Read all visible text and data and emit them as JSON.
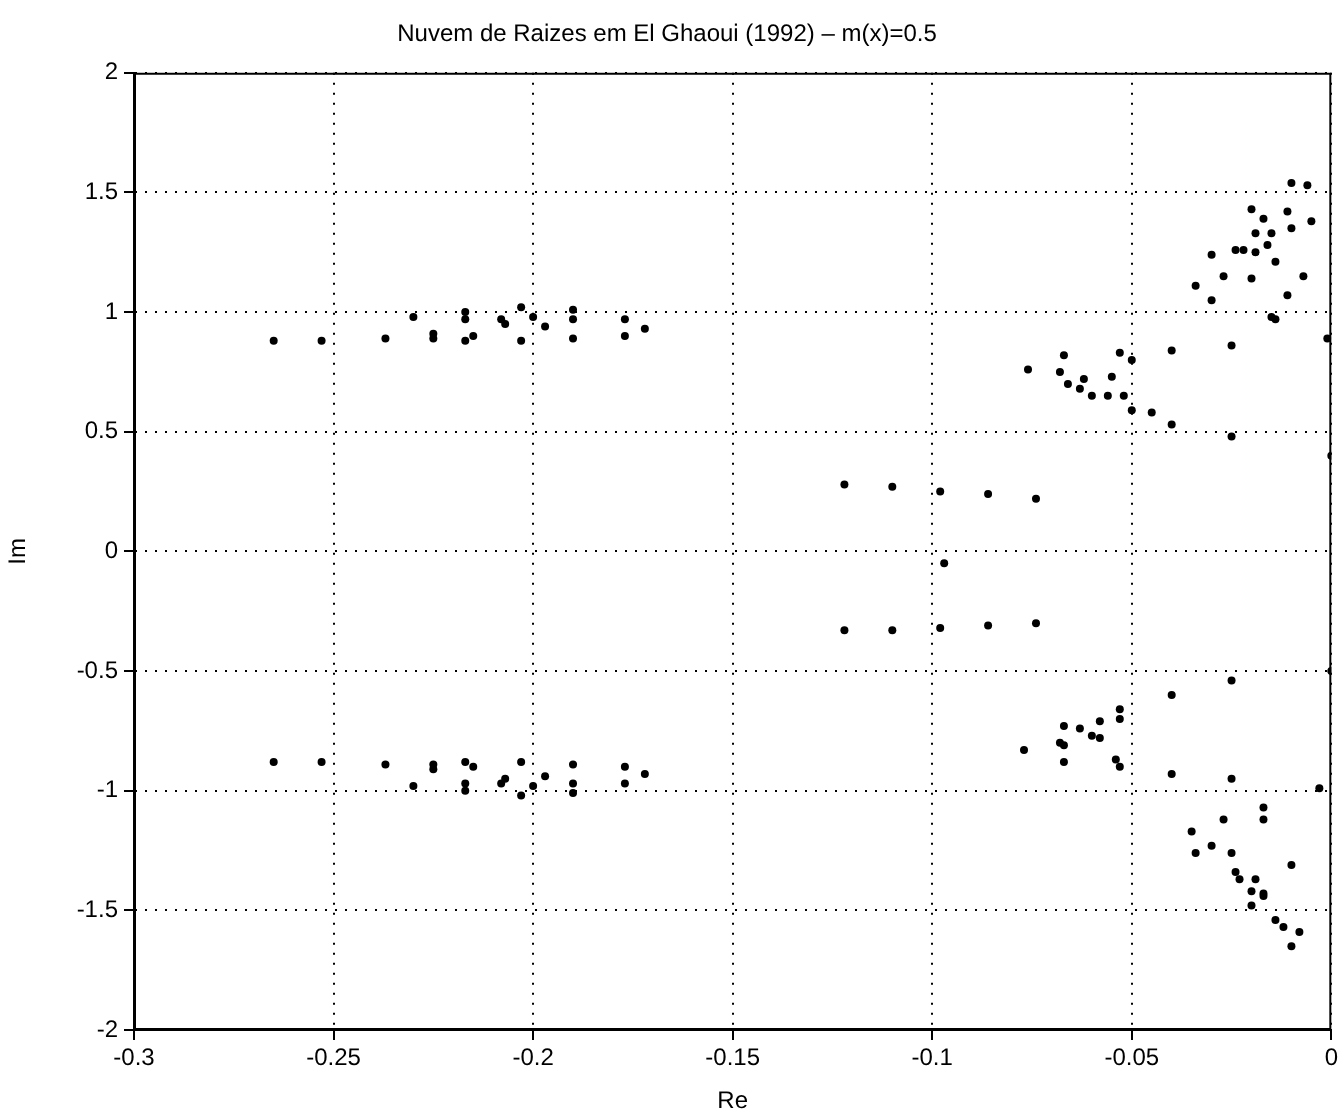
{
  "chart_data": {
    "type": "scatter",
    "title": "Nuvem de Raizes em El Ghaoui (1992) – m(x)=0.5",
    "xlabel": "Re",
    "ylabel": "Im",
    "xlim": [
      -0.3,
      0
    ],
    "xticks": [
      -0.3,
      -0.25,
      -0.2,
      -0.15,
      -0.1,
      -0.05,
      0
    ],
    "ylim": [
      -2,
      2
    ],
    "yticks": [
      -2,
      -1.5,
      -1,
      -0.5,
      0,
      0.5,
      1,
      1.5,
      2
    ],
    "grid": true,
    "marker": "circle",
    "legend": false,
    "series": [
      {
        "color": "#000000",
        "x": [
          -0.265,
          -0.253,
          -0.237,
          -0.225,
          -0.217,
          -0.203,
          -0.19,
          -0.177
        ],
        "values": [
          0.88,
          0.88,
          0.89,
          0.89,
          0.88,
          0.88,
          0.89,
          0.9
        ]
      },
      {
        "color": "#000000",
        "x": [
          -0.23,
          -0.217,
          -0.203,
          -0.19,
          -0.177,
          -0.172
        ],
        "values": [
          0.98,
          1.0,
          1.02,
          1.01,
          0.97,
          0.93
        ]
      },
      {
        "color": "#000000",
        "x": [
          -0.217,
          -0.225,
          -0.215
        ],
        "values": [
          0.97,
          0.91,
          0.9
        ]
      },
      {
        "color": "#000000",
        "x": [
          -0.208,
          -0.2,
          -0.19,
          -0.197,
          -0.207
        ],
        "values": [
          0.97,
          0.98,
          0.97,
          0.94,
          0.95
        ]
      },
      {
        "color": "#000000",
        "x": [
          -0.265,
          -0.253,
          -0.237,
          -0.225,
          -0.217,
          -0.203,
          -0.19,
          -0.177
        ],
        "values": [
          -0.88,
          -0.88,
          -0.89,
          -0.89,
          -0.88,
          -0.88,
          -0.89,
          -0.9
        ]
      },
      {
        "color": "#000000",
        "x": [
          -0.23,
          -0.217,
          -0.203,
          -0.19,
          -0.177,
          -0.172
        ],
        "values": [
          -0.98,
          -1.0,
          -1.02,
          -1.01,
          -0.97,
          -0.93
        ]
      },
      {
        "color": "#000000",
        "x": [
          -0.217,
          -0.225,
          -0.215
        ],
        "values": [
          -0.97,
          -0.91,
          -0.9
        ]
      },
      {
        "color": "#000000",
        "x": [
          -0.208,
          -0.2,
          -0.19,
          -0.197,
          -0.207
        ],
        "values": [
          -0.97,
          -0.98,
          -0.97,
          -0.94,
          -0.95
        ]
      },
      {
        "color": "#000000",
        "x": [
          -0.122,
          -0.11,
          -0.098,
          -0.086,
          -0.074
        ],
        "values": [
          0.28,
          0.27,
          0.25,
          0.24,
          0.22
        ]
      },
      {
        "color": "#000000",
        "x": [
          -0.122,
          -0.11,
          -0.098,
          -0.086,
          -0.074
        ],
        "values": [
          -0.33,
          -0.33,
          -0.32,
          -0.31,
          -0.3
        ]
      },
      {
        "color": "#000000",
        "x": [
          -0.097
        ],
        "values": [
          -0.05
        ]
      },
      {
        "color": "#000000",
        "x": [
          -0.001,
          -0.025,
          -0.04,
          -0.053,
          -0.067,
          -0.076,
          -0.063,
          -0.05,
          -0.04,
          -0.025,
          0
        ],
        "values": [
          0.89,
          0.86,
          0.84,
          0.83,
          0.82,
          0.76,
          0.68,
          0.59,
          0.53,
          0.48,
          0.4
        ]
      },
      {
        "color": "#000000",
        "x": [
          -0.05,
          -0.055,
          -0.052,
          -0.045
        ],
        "values": [
          0.8,
          0.73,
          0.65,
          0.58
        ]
      },
      {
        "color": "#000000",
        "x": [
          -0.068,
          -0.062,
          -0.056,
          -0.06,
          -0.066
        ],
        "values": [
          0.75,
          0.72,
          0.65,
          0.65,
          0.7
        ]
      },
      {
        "color": "#000000",
        "x": [
          -0.014,
          -0.03,
          -0.034,
          -0.03,
          -0.02,
          -0.01,
          -0.006,
          -0.005,
          -0.007,
          -0.011,
          -0.015
        ],
        "values": [
          0.97,
          1.05,
          1.11,
          1.24,
          1.43,
          1.54,
          1.53,
          1.38,
          1.15,
          1.07,
          0.98
        ]
      },
      {
        "color": "#000000",
        "x": [
          -0.027,
          -0.024,
          -0.017,
          -0.011,
          -0.01,
          -0.014,
          -0.02
        ],
        "values": [
          1.15,
          1.26,
          1.39,
          1.42,
          1.35,
          1.21,
          1.14
        ]
      },
      {
        "color": "#000000",
        "x": [
          -0.022,
          -0.019,
          -0.015,
          -0.016,
          -0.019
        ],
        "values": [
          1.26,
          1.33,
          1.33,
          1.28,
          1.25
        ]
      },
      {
        "color": "#000000",
        "x": [
          0,
          -0.025,
          -0.04,
          -0.053,
          -0.067,
          -0.077,
          -0.067,
          -0.053,
          -0.04,
          -0.025,
          -0.003
        ],
        "values": [
          -0.5,
          -0.54,
          -0.6,
          -0.66,
          -0.73,
          -0.83,
          -0.88,
          -0.9,
          -0.93,
          -0.95,
          -0.99
        ]
      },
      {
        "color": "#000000",
        "x": [
          -0.053,
          -0.058,
          -0.054
        ],
        "values": [
          -0.7,
          -0.78,
          -0.87
        ]
      },
      {
        "color": "#000000",
        "x": [
          -0.068,
          -0.063,
          -0.058,
          -0.06,
          -0.067
        ],
        "values": [
          -0.8,
          -0.74,
          -0.71,
          -0.77,
          -0.81
        ]
      },
      {
        "color": "#000000",
        "x": [
          -0.017,
          -0.027,
          -0.035,
          -0.034,
          -0.02,
          -0.01,
          -0.008,
          -0.01,
          -0.017
        ],
        "values": [
          -1.07,
          -1.12,
          -1.17,
          -1.26,
          -1.48,
          -1.65,
          -1.59,
          -1.31,
          -1.12
        ]
      },
      {
        "color": "#000000",
        "x": [
          -0.03,
          -0.025,
          -0.017,
          -0.012,
          -0.014,
          -0.023
        ],
        "values": [
          -1.23,
          -1.26,
          -1.43,
          -1.57,
          -1.54,
          -1.37
        ]
      },
      {
        "color": "#000000",
        "x": [
          -0.024,
          -0.019,
          -0.017,
          -0.02
        ],
        "values": [
          -1.34,
          -1.37,
          -1.44,
          -1.42
        ]
      }
    ]
  }
}
